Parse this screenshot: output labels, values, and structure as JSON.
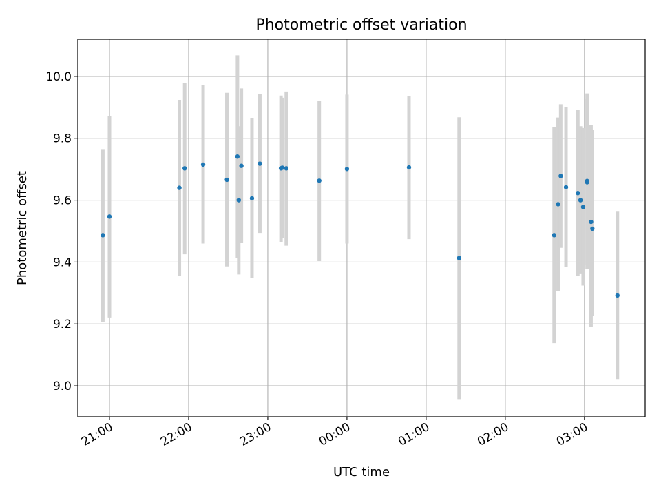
{
  "chart_data": {
    "type": "scatter",
    "title": "Photometric offset variation",
    "xlabel": "UTC time",
    "ylabel": "Photometric offset",
    "x_unit": "UTC clock time (hours, axis spans across midnight)",
    "xlim": [
      "20:36",
      "03:46"
    ],
    "ylim": [
      8.9,
      10.12
    ],
    "xticks": [
      "21:00",
      "22:00",
      "23:00",
      "00:00",
      "01:00",
      "02:00",
      "03:00"
    ],
    "yticks": [
      9.0,
      9.2,
      9.4,
      9.6,
      9.8,
      10.0
    ],
    "ytick_labels": [
      "9.0",
      "9.2",
      "9.4",
      "9.6",
      "9.8",
      "10.0"
    ],
    "grid": true,
    "colors": {
      "point": "#1f77b4",
      "errorbar": "#d3d3d3",
      "grid": "#b0b0b0"
    },
    "series": [
      {
        "points": [
          {
            "x": "20:55",
            "y": 9.487,
            "err_low": 9.207,
            "err_high": 9.763
          },
          {
            "x": "21:00",
            "y": 9.547,
            "err_low": 9.221,
            "err_high": 9.872
          },
          {
            "x": "21:53",
            "y": 9.64,
            "err_low": 9.356,
            "err_high": 9.924
          },
          {
            "x": "21:57",
            "y": 9.703,
            "err_low": 9.425,
            "err_high": 9.978
          },
          {
            "x": "22:11",
            "y": 9.715,
            "err_low": 9.46,
            "err_high": 9.972
          },
          {
            "x": "22:29",
            "y": 9.666,
            "err_low": 9.386,
            "err_high": 9.947
          },
          {
            "x": "22:37",
            "y": 9.741,
            "err_low": 9.413,
            "err_high": 10.068
          },
          {
            "x": "22:38",
            "y": 9.6,
            "err_low": 9.36,
            "err_high": 9.839
          },
          {
            "x": "22:40",
            "y": 9.711,
            "err_low": 9.461,
            "err_high": 9.961
          },
          {
            "x": "22:48",
            "y": 9.606,
            "err_low": 9.349,
            "err_high": 9.865
          },
          {
            "x": "22:54",
            "y": 9.718,
            "err_low": 9.494,
            "err_high": 9.942
          },
          {
            "x": "23:10",
            "y": 9.703,
            "err_low": 9.465,
            "err_high": 9.938
          },
          {
            "x": "23:11",
            "y": 9.705,
            "err_low": 9.478,
            "err_high": 9.931
          },
          {
            "x": "23:14",
            "y": 9.703,
            "err_low": 9.453,
            "err_high": 9.951
          },
          {
            "x": "23:39",
            "y": 9.663,
            "err_low": 9.403,
            "err_high": 9.922
          },
          {
            "x": "00:00",
            "y": 9.701,
            "err_low": 9.46,
            "err_high": 9.941
          },
          {
            "x": "00:47",
            "y": 9.706,
            "err_low": 9.474,
            "err_high": 9.937
          },
          {
            "x": "01:25",
            "y": 9.413,
            "err_low": 8.957,
            "err_high": 9.868
          },
          {
            "x": "02:37",
            "y": 9.487,
            "err_low": 9.138,
            "err_high": 9.836
          },
          {
            "x": "02:40",
            "y": 9.587,
            "err_low": 9.307,
            "err_high": 9.867
          },
          {
            "x": "02:42",
            "y": 9.678,
            "err_low": 9.446,
            "err_high": 9.91
          },
          {
            "x": "02:46",
            "y": 9.642,
            "err_low": 9.383,
            "err_high": 9.9
          },
          {
            "x": "02:55",
            "y": 9.623,
            "err_low": 9.355,
            "err_high": 9.891
          },
          {
            "x": "02:57",
            "y": 9.6,
            "err_low": 9.361,
            "err_high": 9.839
          },
          {
            "x": "02:59",
            "y": 9.578,
            "err_low": 9.324,
            "err_high": 9.833
          },
          {
            "x": "03:02",
            "y": 9.662,
            "err_low": 9.378,
            "err_high": 9.945
          },
          {
            "x": "03:02",
            "y": 9.658,
            "err_low": 9.391,
            "err_high": 9.926
          },
          {
            "x": "03:05",
            "y": 9.53,
            "err_low": 9.19,
            "err_high": 9.843
          },
          {
            "x": "03:06",
            "y": 9.508,
            "err_low": 9.225,
            "err_high": 9.826
          },
          {
            "x": "03:25",
            "y": 9.292,
            "err_low": 9.022,
            "err_high": 9.563
          }
        ]
      }
    ]
  }
}
